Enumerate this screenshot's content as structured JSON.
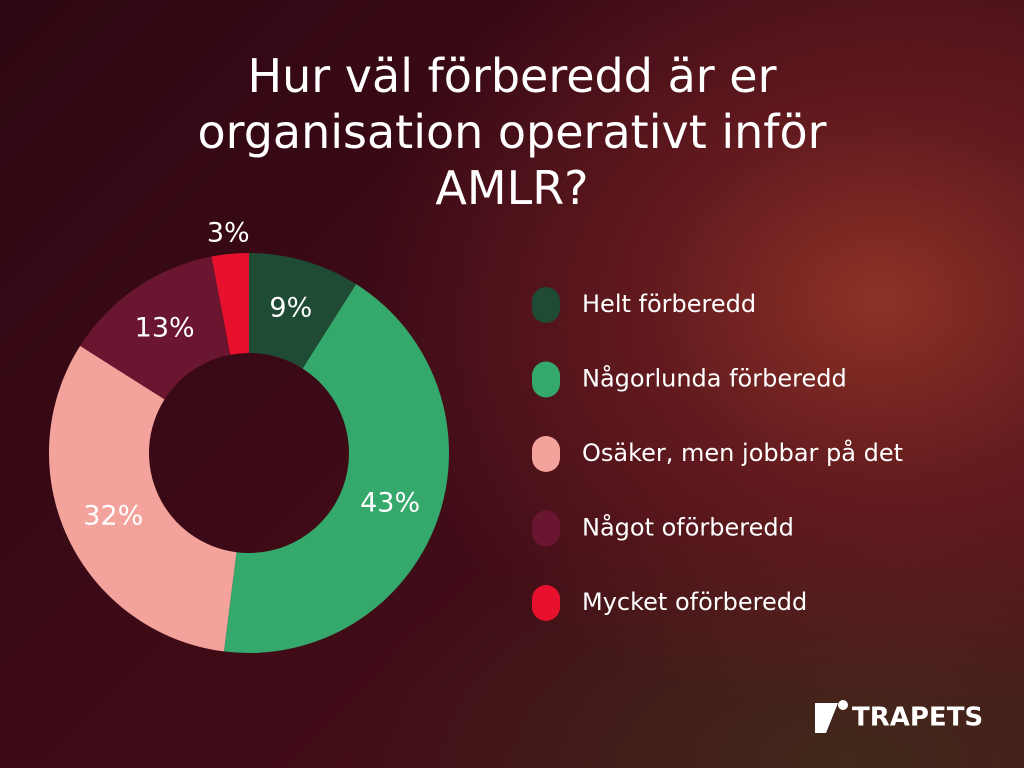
{
  "chart_data": {
    "type": "pie",
    "donut": true,
    "title": "Hur väl förberedd är er organisation operativt inför AMLR?",
    "categories": [
      "Helt förberedd",
      "Någorlunda förberedd",
      "Osäker, men jobbar på det",
      "Något oförberedd",
      "Mycket oförberedd"
    ],
    "values": [
      9,
      43,
      32,
      13,
      3
    ],
    "value_labels": [
      "9%",
      "43%",
      "32%",
      "13%",
      "3%"
    ],
    "colors": [
      "#1f4a34",
      "#35a86b",
      "#f4a39c",
      "#6b1631",
      "#e8112d"
    ]
  },
  "brand": "TRAPETS"
}
